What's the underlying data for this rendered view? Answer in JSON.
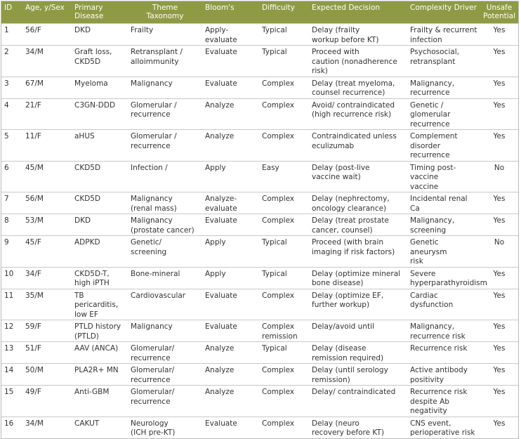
{
  "table": {
    "header": [
      "ID",
      "Age, y/Sex",
      "Primary Disease",
      "Theme\nTaxonomy",
      "Bloom's",
      "Difficulty",
      "Expected Decision",
      "Complexity Driver",
      "Unsafe\nPotential"
    ],
    "rows": [
      [
        "1",
        "56/F",
        "DKD",
        "Frailty",
        "Apply-\nevaluate",
        "Typical",
        "Delay (frailty\nworkup before KT)",
        "Frailty & recurrent\ninfection",
        "Yes"
      ],
      [
        "2",
        "34/M",
        "Graft loss,\nCKD5D",
        "Retransplant /\nalloimmunity",
        "Evaluate",
        "Typical",
        "Proceed with\ncaution (nonadherence\nrisk)",
        "Psychosocial,\nretransplant",
        "Yes"
      ],
      [
        "3",
        "67/M",
        "Myeloma",
        "Malignancy",
        "Evaluate",
        "Complex",
        "Delay (treat myeloma,\ncounsel recurrence)",
        "Malignancy,\nrecurrence",
        "Yes"
      ],
      [
        "4",
        "21/F",
        "C3GN-DDD",
        "Glomerular /\nrecurrence",
        "Analyze",
        "Complex",
        "Avoid/ contraindicated\n(high recurrence risk)",
        "Genetic / glomerular\nrecurrence",
        "Yes"
      ],
      [
        "5",
        "11/F",
        "aHUS",
        "Glomerular /\nrecurrence",
        "Analyze",
        "Complex",
        "Contraindicated unless\neculizumab",
        "Complement\ndisorder recurrence",
        "Yes"
      ],
      [
        "6",
        "45/M",
        "CKD5D",
        "Infection /",
        "Apply",
        "Easy",
        "Delay (post-live\nvaccine wait)",
        "Timing post-vaccine\nvaccine",
        "No"
      ],
      [
        "7",
        "56/M",
        "CKD5D",
        "Malignancy\n(renal mass)",
        "Analyze-\nevaluate",
        "Complex",
        "Delay (nephrectomy,\noncology clearance)",
        "Incidental renal Ca",
        "Yes"
      ],
      [
        "8",
        "53/M",
        "DKD",
        "Malignancy\n(prostate cancer)",
        "Evaluate",
        "Complex",
        "Delay (treat prostate\ncancer, counsel)",
        "Malignancy,\nscreening",
        "Yes"
      ],
      [
        "9",
        "45/F",
        "ADPKD",
        "Genetic/ screening",
        "Apply",
        "Typical",
        "Proceed (with brain\nimaging if risk factors)",
        "Genetic aneurysm\nrisk",
        "No"
      ],
      [
        "10",
        "34/F",
        "CKD5D-T,\nhigh iPTH",
        "Bone-mineral",
        "Apply",
        "Typical",
        "Delay (optimize mineral\nbone disease)",
        "Severe\nhyperparathyroidism",
        "Yes"
      ],
      [
        "11",
        "35/M",
        "TB pericarditis,\nlow EF",
        "Cardiovascular",
        "Evaluate",
        "Complex",
        "Delay (optimize EF,\nfurther workup)",
        "Cardiac dysfunction",
        "Yes"
      ],
      [
        "12",
        "59/F",
        "PTLD history\n(PTLD)",
        "Malignancy",
        "Evaluate",
        "Complex\nremission",
        "Delay/avoid until",
        "Malignancy,\nrecurrence risk",
        "Yes"
      ],
      [
        "13",
        "51/F",
        "AAV (ANCA)",
        "Glomerular/\nrecurrence",
        "Analyze",
        "Typical",
        "Delay (disease\nremission required)",
        "Recurrence risk",
        "Yes"
      ],
      [
        "14",
        "50/M",
        "PLA2R+ MN",
        "Glomerular/\nrecurrence",
        "Analyze",
        "Complex",
        "Delay (until serology\nremission)",
        "Active antibody\npositivity",
        "Yes"
      ],
      [
        "15",
        "49/F",
        "Anti-GBM",
        "Glomerular/\nrecurrence",
        "Analyze",
        "Complex",
        "Delay/ contraindicated",
        "Recurrence risk\ndespite Ab\nnegativity",
        "Yes"
      ],
      [
        "16",
        "34/M",
        "CAKUT",
        "Neurology\n(ICH pre-KT)",
        "Evaluate",
        "Complex",
        "Delay (neuro\nrecovery before KT)",
        "CNS event,\nperioperative risk",
        "Yes"
      ]
    ]
  }
}
